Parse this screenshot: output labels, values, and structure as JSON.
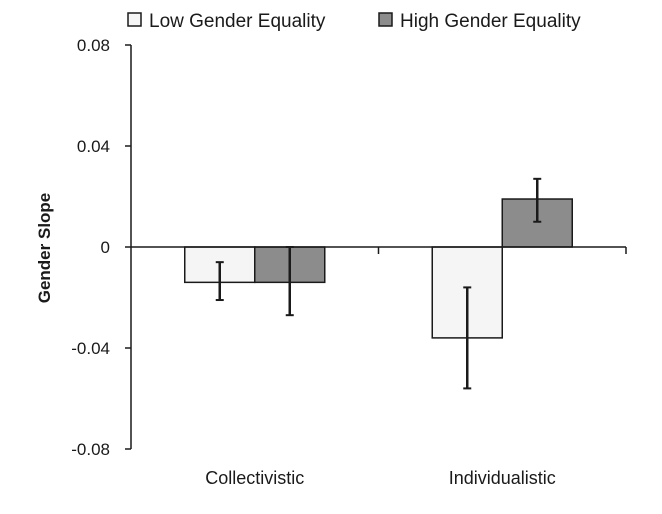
{
  "chart_data": {
    "type": "bar",
    "title": "",
    "xlabel": "",
    "ylabel": "Gender Slope",
    "categories": [
      "Collectivistic",
      "Individualistic"
    ],
    "series": [
      {
        "name": "Low Gender Equality",
        "color": "#f5f5f5",
        "values": [
          -0.014,
          -0.036
        ],
        "error_low": [
          -0.021,
          -0.056
        ],
        "error_high": [
          -0.006,
          -0.016
        ]
      },
      {
        "name": "High Gender Equality",
        "color": "#8c8c8c",
        "values": [
          -0.014,
          0.019
        ],
        "error_low": [
          -0.027,
          0.01
        ],
        "error_high": [
          0.0,
          0.027
        ]
      }
    ],
    "ylim": [
      -0.08,
      0.08
    ],
    "yticks": [
      0.08,
      0.04,
      0,
      -0.04,
      -0.08
    ],
    "ytick_labels": [
      "0.08",
      "0.04",
      "0",
      "-0.04",
      "-0.08"
    ],
    "grid": false,
    "legend_position": "top"
  }
}
